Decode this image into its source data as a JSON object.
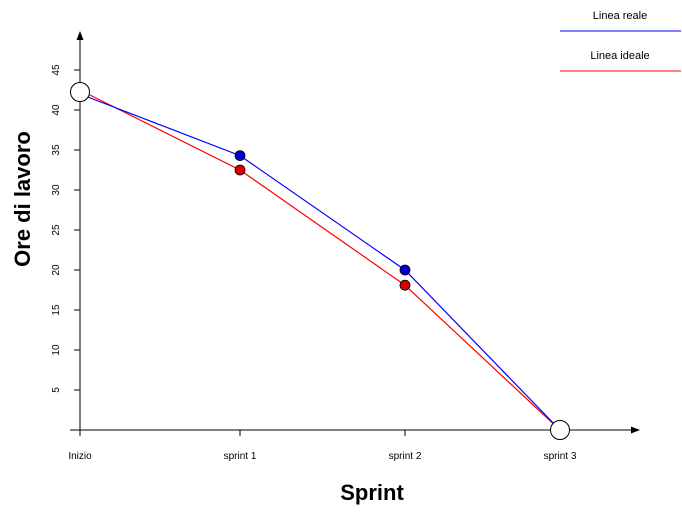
{
  "chart_data": {
    "type": "line",
    "title": "",
    "xlabel": "Sprint",
    "ylabel": "Ore di lavoro",
    "categories": [
      "Inizio",
      "sprint 1",
      "sprint 2",
      "sprint 3"
    ],
    "ylim": [
      0,
      50
    ],
    "yticks": [
      5,
      10,
      15,
      20,
      25,
      30,
      35,
      40,
      45
    ],
    "grid": false,
    "legend_position": "top-right",
    "series": [
      {
        "name": "Linea reale",
        "color": "#0000ff",
        "marker_color": "#0000cc",
        "values": [
          42,
          34.3,
          20,
          0
        ]
      },
      {
        "name": "Linea ideale",
        "color": "#ff0000",
        "marker_color": "#dd0000",
        "values": [
          42.5,
          32.5,
          18.1,
          0
        ]
      }
    ]
  }
}
